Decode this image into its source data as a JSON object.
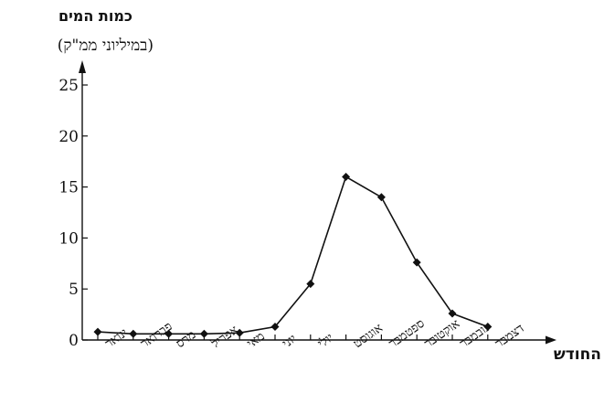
{
  "chart_data": {
    "type": "line",
    "ylabel": "כמות המים",
    "ylabel_unit": "(במיליוני ממ\"ק)",
    "xlabel": "החודש",
    "categories": [
      "ינואר",
      "פברואר",
      "מרס",
      "אפריל",
      "מאי",
      "יוני",
      "יולי",
      "אוגוסט",
      "ספטמבר",
      "אוקטובר",
      "נובמבר",
      "דצמבר"
    ],
    "values": [
      0.8,
      0.6,
      0.6,
      0.6,
      0.7,
      1.3,
      5.5,
      16.0,
      14.0,
      7.6,
      2.6,
      1.3
    ],
    "yticks": [
      0,
      5,
      10,
      15,
      20,
      25
    ],
    "ylim": [
      0,
      26
    ],
    "grid": false,
    "marker": "diamond"
  }
}
